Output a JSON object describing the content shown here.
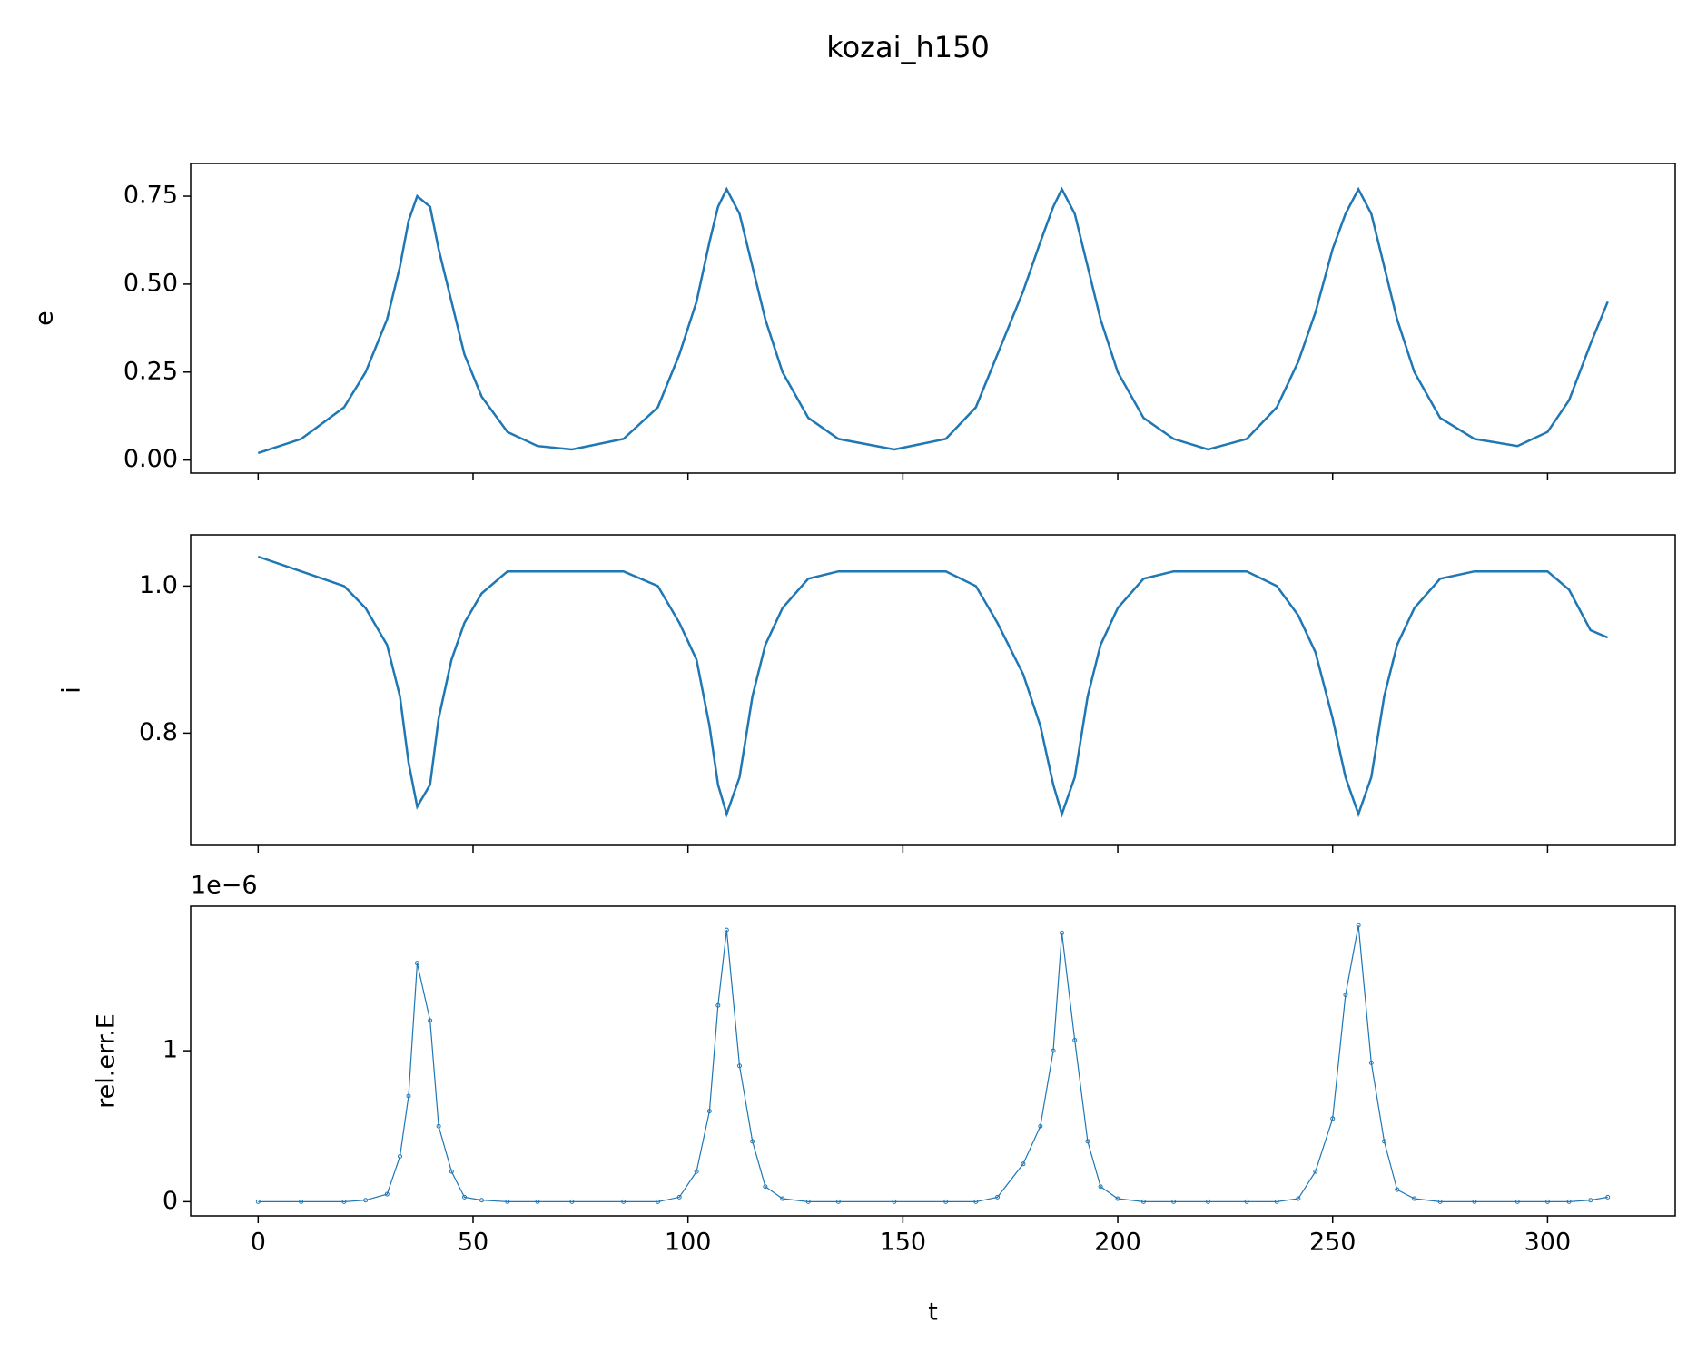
{
  "title": "kozai_h150",
  "chart_data": [
    {
      "type": "line",
      "ylabel": "e",
      "x": [
        0,
        10,
        20,
        25,
        30,
        33,
        35,
        37,
        40,
        42,
        45,
        48,
        52,
        58,
        65,
        73,
        85,
        93,
        98,
        102,
        105,
        107,
        109,
        112,
        115,
        118,
        122,
        128,
        135,
        148,
        160,
        167,
        172,
        178,
        182,
        185,
        187,
        190,
        193,
        196,
        200,
        206,
        213,
        221,
        230,
        237,
        242,
        246,
        250,
        253,
        256,
        259,
        262,
        265,
        269,
        275,
        283,
        293,
        300,
        305,
        310,
        314
      ],
      "series": [
        {
          "color": "#1f77b4",
          "values": [
            0.02,
            0.06,
            0.15,
            0.25,
            0.4,
            0.55,
            0.68,
            0.75,
            0.72,
            0.6,
            0.45,
            0.3,
            0.18,
            0.08,
            0.04,
            0.03,
            0.06,
            0.15,
            0.3,
            0.45,
            0.62,
            0.72,
            0.77,
            0.7,
            0.55,
            0.4,
            0.25,
            0.12,
            0.06,
            0.03,
            0.06,
            0.15,
            0.3,
            0.48,
            0.62,
            0.72,
            0.77,
            0.7,
            0.55,
            0.4,
            0.25,
            0.12,
            0.06,
            0.03,
            0.06,
            0.15,
            0.28,
            0.42,
            0.6,
            0.7,
            0.77,
            0.7,
            0.55,
            0.4,
            0.25,
            0.12,
            0.06,
            0.04,
            0.08,
            0.17,
            0.33,
            0.45
          ]
        }
      ],
      "xlim": [
        -15.7,
        329.7
      ],
      "xticks": [
        0,
        50,
        100,
        150,
        200,
        250,
        300
      ],
      "ylim": [
        -0.037,
        0.843
      ],
      "yticks": [
        {
          "value": 0,
          "label": "0.00"
        },
        {
          "value": 0.25,
          "label": "0.25"
        },
        {
          "value": 0.5,
          "label": "0.50"
        },
        {
          "value": 0.75,
          "label": "0.75"
        }
      ]
    },
    {
      "type": "line",
      "ylabel": "i",
      "x": [
        0,
        10,
        20,
        25,
        30,
        33,
        35,
        37,
        40,
        42,
        45,
        48,
        52,
        58,
        65,
        73,
        85,
        93,
        98,
        102,
        105,
        107,
        109,
        112,
        115,
        118,
        122,
        128,
        135,
        148,
        160,
        167,
        172,
        178,
        182,
        185,
        187,
        190,
        193,
        196,
        200,
        206,
        213,
        221,
        230,
        237,
        242,
        246,
        250,
        253,
        256,
        259,
        262,
        265,
        269,
        275,
        283,
        293,
        300,
        305,
        310,
        314
      ],
      "series": [
        {
          "color": "#1f77b4",
          "values": [
            1.04,
            1.02,
            1.0,
            0.97,
            0.92,
            0.85,
            0.76,
            0.7,
            0.73,
            0.82,
            0.9,
            0.95,
            0.99,
            1.02,
            1.02,
            1.02,
            1.02,
            1.0,
            0.95,
            0.9,
            0.81,
            0.73,
            0.69,
            0.74,
            0.85,
            0.92,
            0.97,
            1.01,
            1.02,
            1.02,
            1.02,
            1.0,
            0.95,
            0.88,
            0.81,
            0.73,
            0.69,
            0.74,
            0.85,
            0.92,
            0.97,
            1.01,
            1.02,
            1.02,
            1.02,
            1.0,
            0.96,
            0.91,
            0.82,
            0.74,
            0.69,
            0.74,
            0.85,
            0.92,
            0.97,
            1.01,
            1.02,
            1.02,
            1.02,
            0.995,
            0.94,
            0.93
          ]
        }
      ],
      "xlim": [
        -15.7,
        329.7
      ],
      "xticks": [
        0,
        50,
        100,
        150,
        200,
        250,
        300
      ],
      "ylim": [
        0.6474,
        1.0696
      ],
      "yticks": [
        {
          "value": 0.8,
          "label": "0.8"
        },
        {
          "value": 1,
          "label": "1.0"
        }
      ]
    },
    {
      "type": "line",
      "ylabel": "rel.err.E",
      "xlabel": "t",
      "offset_label": "1e−6",
      "markers": true,
      "x": [
        0,
        10,
        20,
        25,
        30,
        33,
        35,
        37,
        40,
        42,
        45,
        48,
        52,
        58,
        65,
        73,
        85,
        93,
        98,
        102,
        105,
        107,
        109,
        112,
        115,
        118,
        122,
        128,
        135,
        148,
        160,
        167,
        172,
        178,
        182,
        185,
        187,
        190,
        193,
        196,
        200,
        206,
        213,
        221,
        230,
        237,
        242,
        246,
        250,
        253,
        256,
        259,
        262,
        265,
        269,
        275,
        283,
        293,
        300,
        305,
        310,
        314
      ],
      "series": [
        {
          "color": "#1f77b4",
          "values": [
            0,
            0,
            0,
            0.01,
            0.05,
            0.3,
            0.7,
            1.58,
            1.2,
            0.5,
            0.2,
            0.03,
            0.01,
            0,
            0,
            0,
            0,
            0,
            0.03,
            0.2,
            0.6,
            1.3,
            1.8,
            0.9,
            0.4,
            0.1,
            0.02,
            0,
            0,
            0,
            0,
            0,
            0.03,
            0.25,
            0.5,
            1.0,
            1.78,
            1.07,
            0.4,
            0.1,
            0.02,
            0,
            0,
            0,
            0,
            0,
            0.02,
            0.2,
            0.55,
            1.37,
            1.83,
            0.92,
            0.4,
            0.08,
            0.02,
            0,
            0,
            0,
            0,
            0,
            0.01,
            0.03
          ]
        }
      ],
      "xlim": [
        -15.7,
        329.7
      ],
      "xticks": [
        0,
        50,
        100,
        150,
        200,
        250,
        300
      ],
      "ylim": [
        -0.094,
        1.957
      ],
      "yticks": [
        0,
        1
      ]
    }
  ]
}
